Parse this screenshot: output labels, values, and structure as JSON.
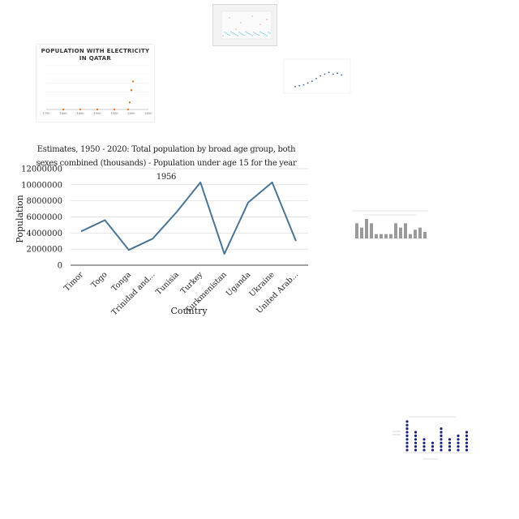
{
  "main_chart": {
    "title": "Estimates, 1950 - 2020: Total population by broad age group, both sexes combined (thousands) - Population under age 15 for the year 1956",
    "series_color": "#4a7596",
    "chart_data": {
      "type": "line",
      "categories": [
        "Timor",
        "Togo",
        "Tonga",
        "Trinidad and...",
        "Tunisia",
        "Turkey",
        "Turkmenistan",
        "Uganda",
        "Ukraine",
        "United Arab..."
      ],
      "values": [
        4200000,
        5600000,
        1900000,
        3300000,
        6600000,
        10300000,
        1400000,
        7800000,
        10300000,
        3000000
      ],
      "xlabel": "Country",
      "ylabel": "Population",
      "ylim": [
        0,
        12000000
      ],
      "yticks": [
        "0",
        "2000000",
        "4000000",
        "6000000",
        "8000000",
        "10000000",
        "12000000"
      ],
      "grid": true,
      "legend": "none"
    }
  },
  "qatar_chart": {
    "title": "POPULATION WITH ELECTRICITY IN QATAR",
    "marker_color": "#e87722",
    "chart_data": {
      "type": "scatter",
      "x": [
        1800,
        1850,
        1900,
        1950,
        1990,
        1995,
        2000,
        2005
      ],
      "y": [
        0,
        0,
        0,
        0,
        0,
        0.4,
        1.1,
        1.6
      ],
      "xticks": [
        "1750",
        "1800",
        "1850",
        "1900",
        "1950",
        "2000",
        "2050"
      ],
      "xlim": [
        1750,
        2050
      ],
      "ylim": [
        0,
        2.5
      ]
    }
  },
  "thumb_scatter": {
    "accent": "#3bb0d0",
    "secondary": "#e07070"
  },
  "thumb_line": {
    "marker_color": "#3a5fb0",
    "chart_data": {
      "type": "line",
      "values": [
        3.0,
        3.1,
        3.2,
        3.4,
        3.6,
        3.9,
        4.2,
        4.4,
        4.6,
        4.4,
        4.5,
        4.3
      ]
    }
  },
  "thumb_bar": {
    "bar_color": "#9a9a9a",
    "chart_data": {
      "type": "bar",
      "values": [
        7,
        5,
        9,
        7,
        2,
        2,
        2,
        2,
        7,
        5,
        7,
        2,
        4,
        5,
        3
      ]
    }
  },
  "thumb_dots": {
    "dot_color": "#1a237e",
    "chart_data": {
      "type": "scatter",
      "values": [
        9,
        6,
        4,
        3,
        7,
        4,
        5,
        6
      ]
    }
  }
}
